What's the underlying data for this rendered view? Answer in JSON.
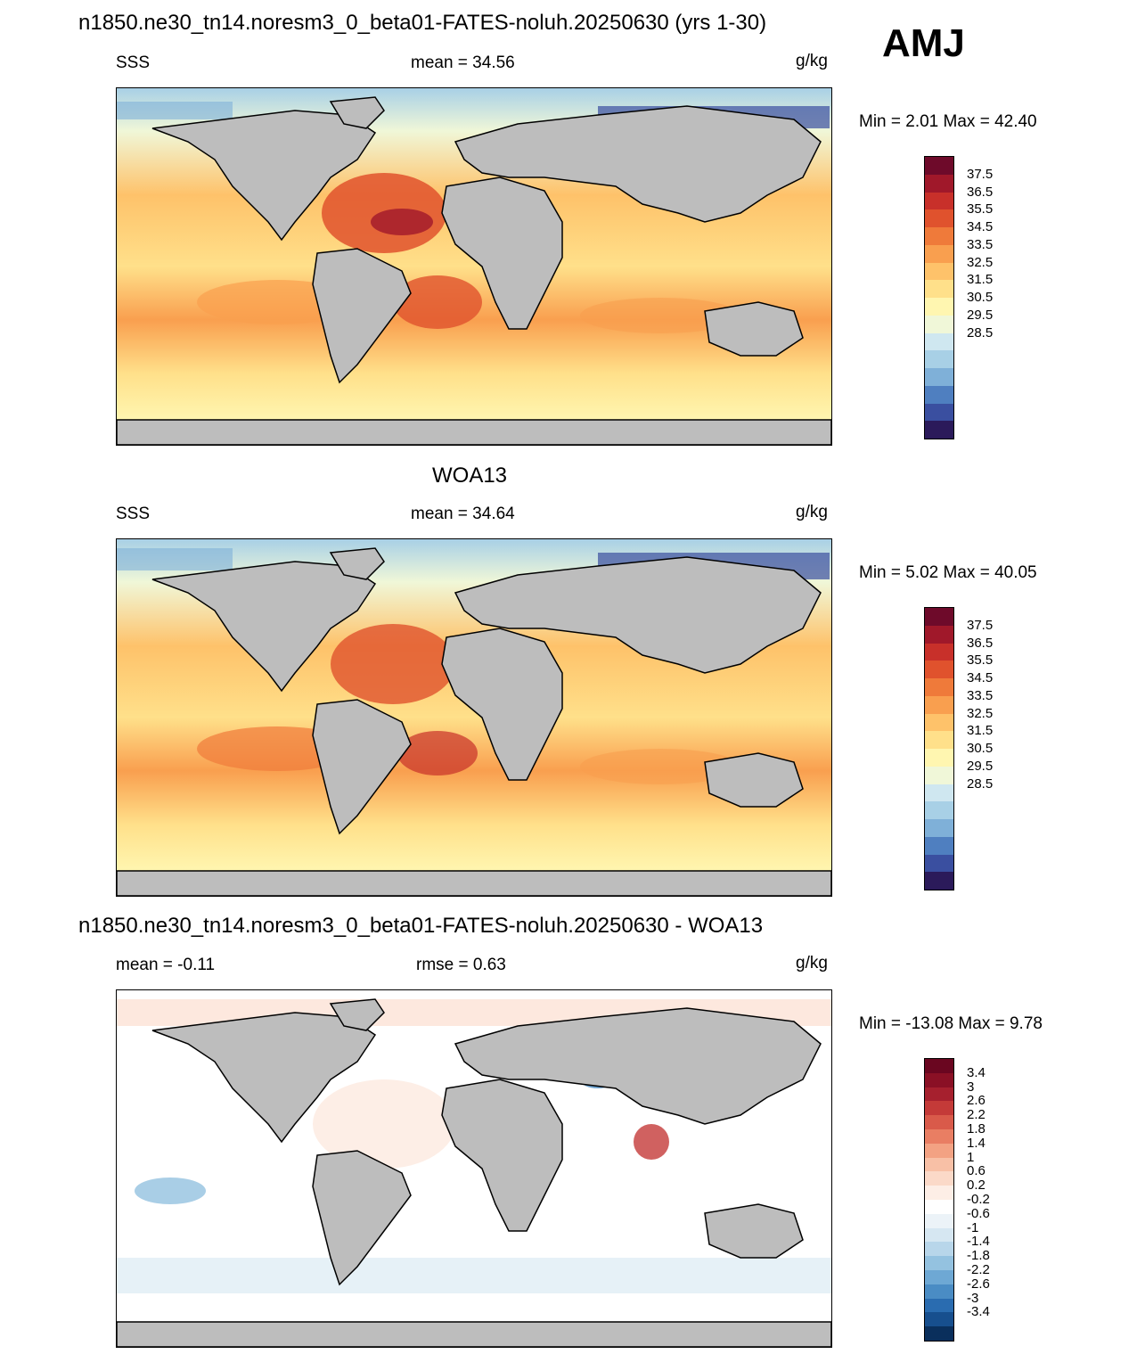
{
  "header": {
    "title": "n1850.ne30_tn14.noresm3_0_beta01-FATES-noluh.20250630 (yrs 1-30)",
    "season": "AMJ"
  },
  "panels": [
    {
      "id": "model",
      "title": "",
      "left_label": "SSS",
      "center_label": "mean =  34.56",
      "units": "g/kg",
      "minmax": "Min =   2.01 Max =  42.40",
      "colorbar": {
        "colors": [
          "#2b1a5a",
          "#3a4fa0",
          "#4f7fc0",
          "#7fb0d8",
          "#a8d0e6",
          "#cfe7f0",
          "#f0f7d8",
          "#fff6b0",
          "#ffe08a",
          "#fec26a",
          "#f99f4f",
          "#ef7a3a",
          "#e0522d",
          "#c8302a",
          "#a0182a",
          "#6e0a2a"
        ],
        "ticks": [
          "37.5",
          "36.5",
          "35.5",
          "34.5",
          "33.5",
          "32.5",
          "31.5",
          "30.5",
          "29.5",
          "28.5"
        ]
      }
    },
    {
      "id": "obs",
      "title": "WOA13",
      "left_label": "SSS",
      "center_label": "mean =  34.64",
      "units": "g/kg",
      "minmax": "Min =   5.02 Max =  40.05",
      "colorbar": {
        "colors": [
          "#2b1a5a",
          "#3a4fa0",
          "#4f7fc0",
          "#7fb0d8",
          "#a8d0e6",
          "#cfe7f0",
          "#f0f7d8",
          "#fff6b0",
          "#ffe08a",
          "#fec26a",
          "#f99f4f",
          "#ef7a3a",
          "#e0522d",
          "#c8302a",
          "#a0182a",
          "#6e0a2a"
        ],
        "ticks": [
          "37.5",
          "36.5",
          "35.5",
          "34.5",
          "33.5",
          "32.5",
          "31.5",
          "30.5",
          "29.5",
          "28.5"
        ]
      }
    },
    {
      "id": "diff",
      "title": "n1850.ne30_tn14.noresm3_0_beta01-FATES-noluh.20250630 - WOA13",
      "left_label": "mean =  -0.11",
      "center_label": "rmse =   0.63",
      "units": "g/kg",
      "minmax": "Min = -13.08 Max =   9.78",
      "colorbar": {
        "colors": [
          "#0a2f5c",
          "#174f8e",
          "#2a6cb0",
          "#4a8cc4",
          "#6ea8d4",
          "#94c2e0",
          "#b8d6ea",
          "#d6e7f2",
          "#ecf3f8",
          "#ffffff",
          "#fdeee6",
          "#fbd9c8",
          "#f8c0a6",
          "#f3a283",
          "#e97e63",
          "#d95a4a",
          "#c43a38",
          "#a6202e",
          "#8a1025",
          "#6a0620"
        ],
        "ticks": [
          "3.4",
          "3",
          "2.6",
          "2.2",
          "1.8",
          "1.4",
          "1",
          "0.6",
          "0.2",
          "-0.2",
          "-0.6",
          "-1",
          "-1.4",
          "-1.8",
          "-2.2",
          "-2.6",
          "-3",
          "-3.4"
        ]
      }
    }
  ]
}
